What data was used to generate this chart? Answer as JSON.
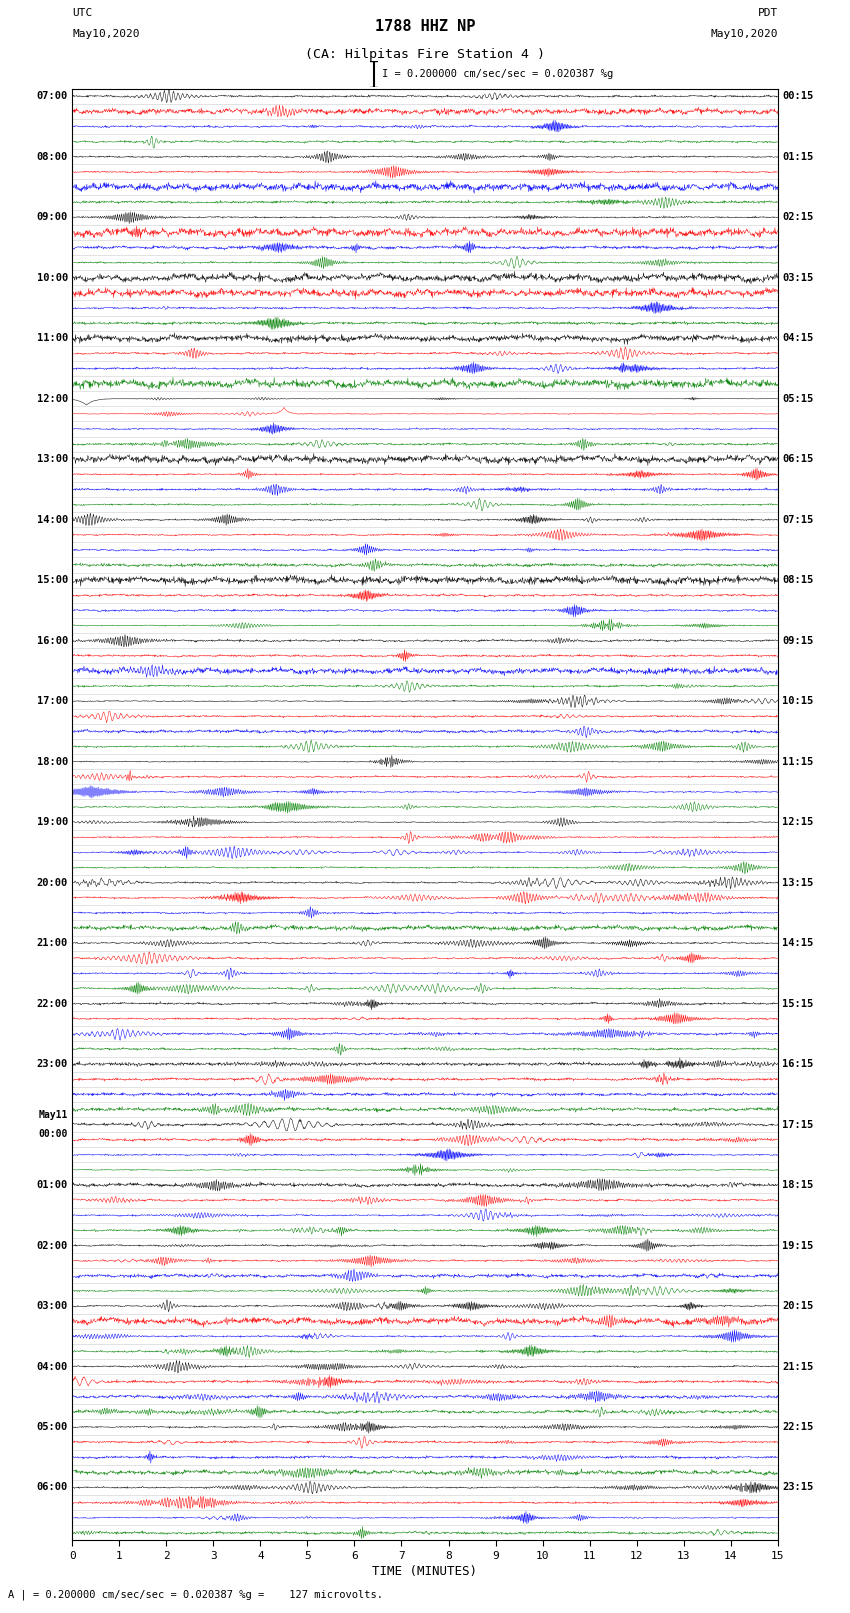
{
  "title_line1": "1788 HHZ NP",
  "title_line2": "(CA: Hilpitas Fire Station 4 )",
  "scale_bar_text": "I = 0.200000 cm/sec/sec = 0.020387 %g",
  "xlabel": "TIME (MINUTES)",
  "bottom_note": "A | = 0.200000 cm/sec/sec = 0.020387 %g =    127 microvolts.",
  "xlim": [
    0,
    15
  ],
  "xticks": [
    0,
    1,
    2,
    3,
    4,
    5,
    6,
    7,
    8,
    9,
    10,
    11,
    12,
    13,
    14,
    15
  ],
  "num_rows": 96,
  "colors": [
    "black",
    "red",
    "blue",
    "green"
  ],
  "left_times": [
    "07:00",
    "",
    "",
    "",
    "08:00",
    "",
    "",
    "",
    "09:00",
    "",
    "",
    "",
    "10:00",
    "",
    "",
    "",
    "11:00",
    "",
    "",
    "",
    "12:00",
    "",
    "",
    "",
    "13:00",
    "",
    "",
    "",
    "14:00",
    "",
    "",
    "",
    "15:00",
    "",
    "",
    "",
    "16:00",
    "",
    "",
    "",
    "17:00",
    "",
    "",
    "",
    "18:00",
    "",
    "",
    "",
    "19:00",
    "",
    "",
    "",
    "20:00",
    "",
    "",
    "",
    "21:00",
    "",
    "",
    "",
    "22:00",
    "",
    "",
    "",
    "23:00",
    "",
    "",
    "",
    "May11\n00:00",
    "",
    "",
    "",
    "01:00",
    "",
    "",
    "",
    "02:00",
    "",
    "",
    "",
    "03:00",
    "",
    "",
    "",
    "04:00",
    "",
    "",
    "",
    "05:00",
    "",
    "",
    "",
    "06:00",
    "",
    "",
    ""
  ],
  "right_times": [
    "00:15",
    "",
    "",
    "",
    "01:15",
    "",
    "",
    "",
    "02:15",
    "",
    "",
    "",
    "03:15",
    "",
    "",
    "",
    "04:15",
    "",
    "",
    "",
    "05:15",
    "",
    "",
    "",
    "06:15",
    "",
    "",
    "",
    "07:15",
    "",
    "",
    "",
    "08:15",
    "",
    "",
    "",
    "09:15",
    "",
    "",
    "",
    "10:15",
    "",
    "",
    "",
    "11:15",
    "",
    "",
    "",
    "12:15",
    "",
    "",
    "",
    "13:15",
    "",
    "",
    "",
    "14:15",
    "",
    "",
    "",
    "15:15",
    "",
    "",
    "",
    "16:15",
    "",
    "",
    "",
    "17:15",
    "",
    "",
    "",
    "18:15",
    "",
    "",
    "",
    "19:15",
    "",
    "",
    "",
    "20:15",
    "",
    "",
    "",
    "21:15",
    "",
    "",
    "",
    "22:15",
    "",
    "",
    "",
    "23:15",
    "",
    "",
    ""
  ],
  "bg_color": "#ffffff",
  "seed": 42,
  "T": 1500
}
